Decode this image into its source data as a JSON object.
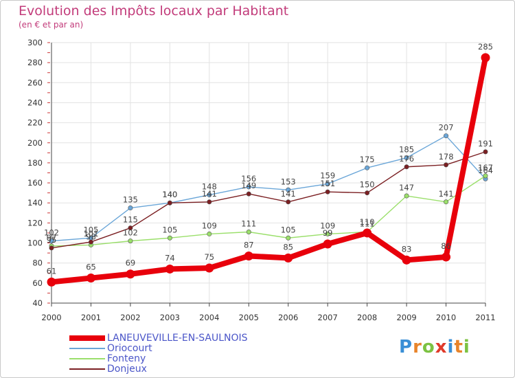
{
  "title": "Evolution des Impôts locaux par Habitant",
  "subtitle": "(en € et par an)",
  "logo": {
    "letters": [
      "P",
      "r",
      "o",
      "x",
      "i",
      "t",
      "i"
    ],
    "colors": [
      "#3a8fd6",
      "#e8842a",
      "#7cc242",
      "#e03a2a",
      "#3a8fd6",
      "#e8842a",
      "#7cc242"
    ]
  },
  "chart_data": {
    "type": "line",
    "title": "Evolution des Impôts locaux par Habitant",
    "subtitle": "(en € et par an)",
    "xlabel": "",
    "ylabel": "",
    "categories": [
      "2000",
      "2001",
      "2002",
      "2003",
      "2004",
      "2005",
      "2006",
      "2007",
      "2008",
      "2009",
      "2010",
      "2011"
    ],
    "ylim": [
      40,
      300
    ],
    "yticks": [
      40,
      60,
      80,
      100,
      120,
      140,
      160,
      180,
      200,
      220,
      240,
      260,
      280,
      300
    ],
    "grid": true,
    "legend_position": "bottom-left",
    "series": [
      {
        "name": "LANEUVEVILLE-EN-SAULNOIS",
        "color": "#e8000b",
        "emphasis": true,
        "values": [
          61,
          65,
          69,
          74,
          75,
          87,
          85,
          99,
          110,
          83,
          86,
          285
        ],
        "labels": [
          "61",
          "65",
          "69",
          "74",
          "75",
          "87",
          "85",
          "99",
          "110",
          "83",
          "86",
          "285"
        ]
      },
      {
        "name": "Oriocourt",
        "color": "#6aa6d8",
        "emphasis": false,
        "values": [
          102,
          105,
          135,
          140,
          148,
          156,
          153,
          159,
          175,
          185,
          207,
          164
        ],
        "labels": [
          "102",
          "105",
          "135",
          "140",
          "148",
          "156",
          "153",
          "159",
          "175",
          "185",
          "207",
          "164"
        ]
      },
      {
        "name": "Fonteny",
        "color": "#9adf6a",
        "emphasis": false,
        "values": [
          97,
          98,
          102,
          105,
          109,
          111,
          105,
          109,
          111,
          147,
          141,
          167
        ],
        "labels": [
          "97",
          "98",
          "102",
          "105",
          "109",
          "111",
          "105",
          "109",
          "111",
          "147",
          "141",
          "167"
        ]
      },
      {
        "name": "Donjeux",
        "color": "#7b1f22",
        "emphasis": false,
        "values": [
          95,
          101,
          115,
          140,
          141,
          149,
          141,
          151,
          150,
          176,
          178,
          191
        ],
        "labels": [
          "95",
          "101",
          "115",
          "140",
          "141",
          "149",
          "141",
          "151",
          "150",
          "176",
          "178",
          "191"
        ]
      }
    ]
  }
}
